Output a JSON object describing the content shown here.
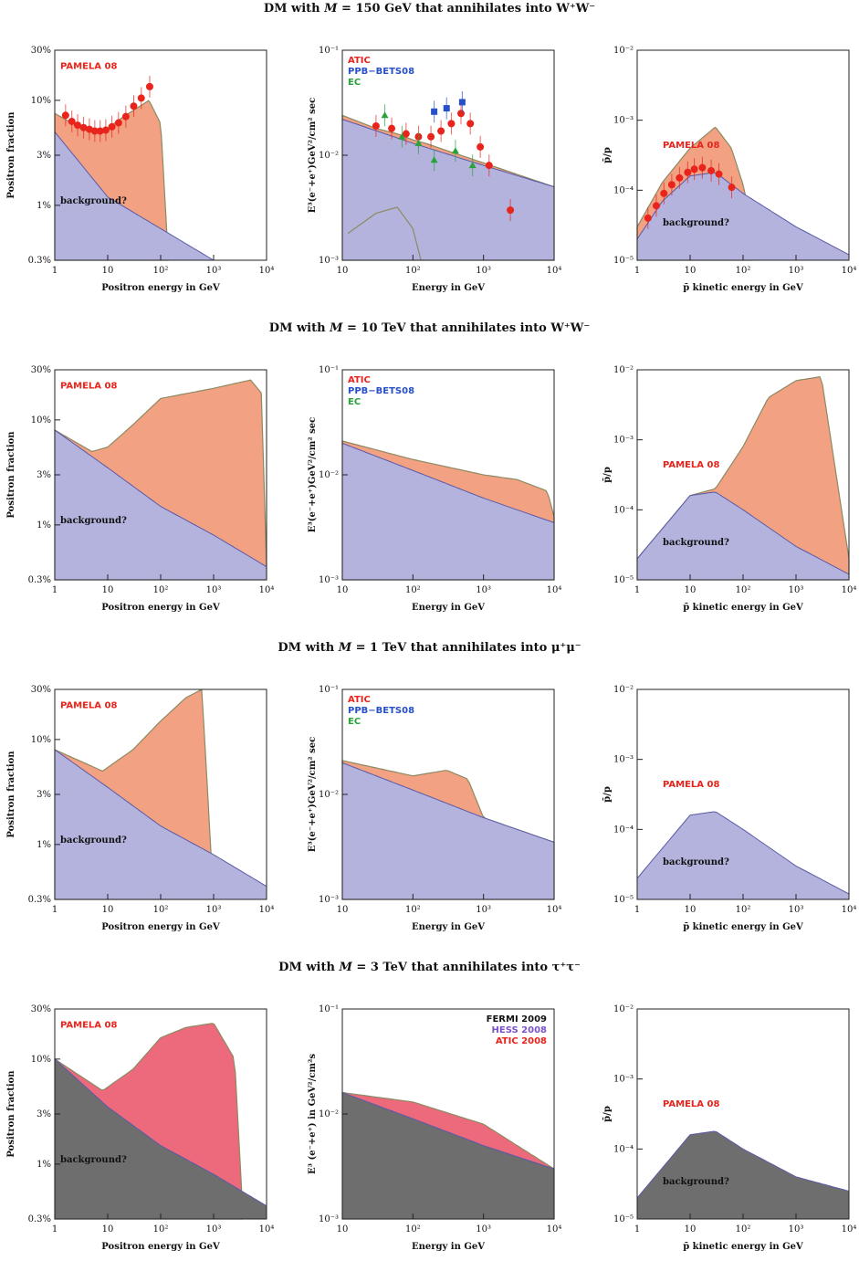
{
  "rows": [
    {
      "title_pre": "DM with ",
      "title_m": "M",
      "title_post": " = 150 GeV that annihilates into W⁺W⁻"
    },
    {
      "title_pre": "DM with ",
      "title_m": "M",
      "title_post": " = 10 TeV that annihilates into W⁺W⁻"
    },
    {
      "title_pre": "DM with ",
      "title_m": "M",
      "title_post": " = 1 TeV that annihilates into μ⁺μ⁻"
    },
    {
      "title_pre": "DM with ",
      "title_m": "M",
      "title_post": " = 3 TeV that annihilates into τ⁺τ⁻"
    }
  ],
  "common": {
    "positron_xlabel": "Positron energy in GeV",
    "positron_ylabel": "Positron fraction",
    "electron_xlabel": "Energy in GeV",
    "electron_ylabel": "E³(e⁻+e⁺)GeV²/cm² sec",
    "electron_ylabel_row4": "E³ (e⁻+e⁺) in GeV²/cm²s",
    "antiproton_xlabel": "p̄ kinetic energy in GeV",
    "antiproton_ylabel": "p̄/p",
    "background_label": "background?",
    "pamela_label": "PAMELA 08",
    "legend_rows_1_3": [
      "ATIC",
      "PPB−BETS08",
      "EC"
    ],
    "legend_row_4": [
      "FERMI 2009",
      "HESS 2008",
      "ATIC 2008"
    ]
  },
  "colors": {
    "background_fill_rows_1_3": "#b3b3dd",
    "background_fill_row4": "#6e6e6e",
    "dm_fill_rows_1_3": "#f2a183",
    "dm_fill_row4": "#ec6a7c",
    "data_red": "#e8241c",
    "data_blue": "#2750c8",
    "data_green": "#2aa23a",
    "curve_olive": "#8c8a62"
  },
  "chart_data": [
    {
      "type": "area",
      "row": 1,
      "panel": "positron",
      "xlabel": "Positron energy in GeV",
      "ylabel": "Positron fraction",
      "xscale": "log",
      "yscale": "log",
      "xlim": [
        1,
        10000
      ],
      "ylim": [
        0.003,
        0.3
      ],
      "yticks": [
        "0.3%",
        "1%",
        "3%",
        "10%",
        "30%"
      ],
      "xticks": [
        "1",
        "10",
        "10²",
        "10³",
        "10⁴"
      ],
      "background_fraction": {
        "x": [
          1,
          10,
          100,
          1000,
          10000
        ],
        "y": [
          0.05,
          0.012,
          0.006,
          0.003,
          0.0015
        ]
      },
      "total_fraction": {
        "x": [
          1,
          3,
          8,
          20,
          60,
          100,
          140
        ],
        "y": [
          0.075,
          0.055,
          0.05,
          0.07,
          0.1,
          0.06,
          0.003
        ]
      },
      "pamela": {
        "x": [
          1.6,
          2.1,
          2.7,
          3.5,
          4.5,
          5.7,
          7.2,
          9.2,
          12,
          16,
          22,
          31,
          43,
          62
        ],
        "y": [
          0.072,
          0.063,
          0.058,
          0.055,
          0.053,
          0.051,
          0.051,
          0.052,
          0.056,
          0.061,
          0.07,
          0.088,
          0.105,
          0.135
        ]
      }
    },
    {
      "type": "area",
      "row": 1,
      "panel": "electron",
      "xlabel": "Energy in GeV",
      "ylabel": "E³(e⁻+e⁺)GeV²/cm² sec",
      "xscale": "log",
      "yscale": "log",
      "xlim": [
        10,
        10000
      ],
      "ylim": [
        0.001,
        0.1
      ],
      "legend": [
        "ATIC",
        "PPB−BETS08",
        "EC"
      ],
      "background": {
        "x": [
          10,
          100,
          1000,
          10000
        ],
        "y": [
          0.022,
          0.013,
          0.008,
          0.005
        ]
      },
      "total": {
        "x": [
          10,
          30,
          60,
          100,
          150,
          10000
        ],
        "y": [
          0.024,
          0.018,
          0.016,
          0.014,
          0.013,
          0.005
        ]
      },
      "dm_component": {
        "x": [
          12,
          30,
          60,
          100,
          130
        ],
        "y": [
          0.0018,
          0.0028,
          0.0032,
          0.002,
          0.001
        ]
      },
      "atic": {
        "x": [
          30,
          50,
          80,
          120,
          180,
          250,
          350,
          480,
          650,
          900,
          1200,
          2400
        ],
        "y": [
          0.019,
          0.018,
          0.016,
          0.015,
          0.015,
          0.017,
          0.02,
          0.025,
          0.02,
          0.012,
          0.008,
          0.003
        ]
      },
      "ppb_bets08": {
        "x": [
          200,
          300,
          500
        ],
        "y": [
          0.026,
          0.028,
          0.032
        ]
      },
      "ec": {
        "x": [
          40,
          70,
          120,
          200,
          400,
          700
        ],
        "y": [
          0.024,
          0.015,
          0.013,
          0.009,
          0.011,
          0.008
        ]
      }
    },
    {
      "type": "area",
      "row": 1,
      "panel": "antiproton",
      "xlabel": "p̄ kinetic energy in GeV",
      "ylabel": "p̄/p",
      "xscale": "log",
      "yscale": "log",
      "xlim": [
        1,
        10000
      ],
      "ylim": [
        1e-05,
        0.01
      ],
      "background": {
        "x": [
          1,
          3,
          10,
          30,
          100,
          1000,
          10000
        ],
        "y": [
          2e-05,
          7e-05,
          0.00016,
          0.00018,
          9e-05,
          3e-05,
          1.2e-05
        ]
      },
      "total": {
        "x": [
          1,
          3,
          10,
          30,
          60,
          100,
          150
        ],
        "y": [
          3e-05,
          0.00013,
          0.0004,
          0.0008,
          0.0004,
          0.00012,
          3e-05
        ]
      },
      "pamela": {
        "x": [
          1.6,
          2.3,
          3.2,
          4.5,
          6.3,
          9,
          12,
          17,
          25,
          35,
          61
        ],
        "y": [
          4e-05,
          6e-05,
          9e-05,
          0.00012,
          0.00015,
          0.00018,
          0.0002,
          0.00021,
          0.00019,
          0.00017,
          0.00011
        ]
      }
    },
    {
      "type": "area",
      "row": 2,
      "panel": "positron",
      "xlim": [
        1,
        10000
      ],
      "ylim": [
        0.003,
        0.3
      ],
      "background_fraction": {
        "x": [
          1,
          10,
          100,
          1000,
          10000
        ],
        "y": [
          0.08,
          0.035,
          0.015,
          0.008,
          0.004
        ]
      },
      "total_fraction": {
        "x": [
          1,
          5,
          10,
          30,
          100,
          1000,
          5000,
          8000,
          10000
        ],
        "y": [
          0.08,
          0.05,
          0.055,
          0.09,
          0.16,
          0.2,
          0.24,
          0.18,
          0.004
        ]
      }
    },
    {
      "type": "area",
      "row": 2,
      "panel": "electron",
      "xlim": [
        10,
        10000
      ],
      "ylim": [
        0.001,
        0.1
      ],
      "legend": [
        "ATIC",
        "PPB−BETS08",
        "EC"
      ],
      "background": {
        "x": [
          10,
          100,
          1000,
          10000
        ],
        "y": [
          0.02,
          0.011,
          0.006,
          0.0035
        ]
      },
      "total": {
        "x": [
          10,
          100,
          1000,
          3000,
          8000,
          10000
        ],
        "y": [
          0.021,
          0.014,
          0.01,
          0.009,
          0.007,
          0.004
        ]
      }
    },
    {
      "type": "area",
      "row": 2,
      "panel": "antiproton",
      "xlim": [
        1,
        10000
      ],
      "ylim": [
        1e-05,
        0.01
      ],
      "background": {
        "x": [
          1,
          10,
          30,
          100,
          1000,
          10000
        ],
        "y": [
          2e-05,
          0.00016,
          0.00018,
          0.0001,
          3e-05,
          1.2e-05
        ]
      },
      "total": {
        "x": [
          1,
          10,
          30,
          100,
          300,
          1000,
          3000,
          10000
        ],
        "y": [
          2e-05,
          0.00016,
          0.0002,
          0.0008,
          0.004,
          0.007,
          0.008,
          2e-05
        ]
      }
    },
    {
      "type": "area",
      "row": 3,
      "panel": "positron",
      "xlim": [
        1,
        10000
      ],
      "ylim": [
        0.003,
        0.3
      ],
      "background_fraction": {
        "x": [
          1,
          10,
          100,
          1000,
          10000
        ],
        "y": [
          0.08,
          0.035,
          0.015,
          0.008,
          0.004
        ]
      },
      "total_fraction": {
        "x": [
          1,
          8,
          30,
          100,
          300,
          600,
          1000
        ],
        "y": [
          0.08,
          0.05,
          0.08,
          0.15,
          0.25,
          0.3,
          0.003
        ]
      }
    },
    {
      "type": "area",
      "row": 3,
      "panel": "electron",
      "xlim": [
        10,
        10000
      ],
      "ylim": [
        0.001,
        0.1
      ],
      "legend": [
        "ATIC",
        "PPB−BETS08",
        "EC"
      ],
      "background": {
        "x": [
          10,
          100,
          1000,
          10000
        ],
        "y": [
          0.02,
          0.011,
          0.006,
          0.0035
        ]
      },
      "total": {
        "x": [
          10,
          100,
          300,
          600,
          1000,
          10000
        ],
        "y": [
          0.021,
          0.015,
          0.017,
          0.014,
          0.006,
          0.0035
        ]
      }
    },
    {
      "type": "area",
      "row": 3,
      "panel": "antiproton",
      "xlim": [
        1,
        10000
      ],
      "ylim": [
        1e-05,
        0.01
      ],
      "background": {
        "x": [
          1,
          10,
          30,
          100,
          1000,
          10000
        ],
        "y": [
          2e-05,
          0.00016,
          0.00018,
          0.0001,
          3e-05,
          1.2e-05
        ]
      }
    },
    {
      "type": "area",
      "row": 4,
      "panel": "positron",
      "xlim": [
        1,
        10000
      ],
      "ylim": [
        0.003,
        0.3
      ],
      "background_fraction": {
        "x": [
          1,
          10,
          100,
          1000,
          10000
        ],
        "y": [
          0.1,
          0.035,
          0.015,
          0.008,
          0.004
        ]
      },
      "total_fraction": {
        "x": [
          1,
          8,
          30,
          100,
          300,
          1000,
          2500,
          3500
        ],
        "y": [
          0.1,
          0.05,
          0.08,
          0.16,
          0.2,
          0.22,
          0.1,
          0.004
        ]
      }
    },
    {
      "type": "area",
      "row": 4,
      "panel": "electron",
      "xlim": [
        10,
        10000
      ],
      "ylim": [
        0.001,
        0.1
      ],
      "legend": [
        "FERMI 2009",
        "HESS 2008",
        "ATIC 2008"
      ],
      "background": {
        "x": [
          10,
          100,
          1000,
          10000
        ],
        "y": [
          0.016,
          0.009,
          0.005,
          0.003
        ]
      },
      "total": {
        "x": [
          10,
          100,
          1000,
          3000,
          10000
        ],
        "y": [
          0.016,
          0.013,
          0.008,
          0.005,
          0.003
        ]
      }
    },
    {
      "type": "area",
      "row": 4,
      "panel": "antiproton",
      "xlim": [
        1,
        10000
      ],
      "ylim": [
        1e-05,
        0.01
      ],
      "background": {
        "x": [
          1,
          10,
          30,
          100,
          1000,
          10000
        ],
        "y": [
          2e-05,
          0.00016,
          0.00018,
          0.0001,
          4e-05,
          2.5e-05
        ]
      }
    }
  ]
}
